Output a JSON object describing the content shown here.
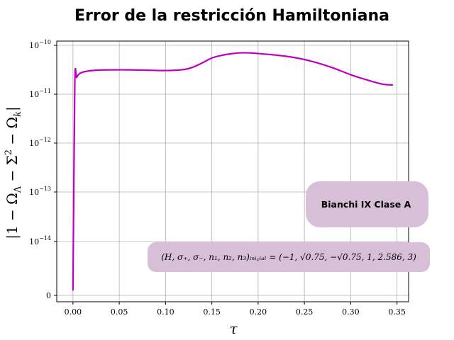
{
  "chart_data": {
    "type": "line",
    "title": "Error de la restricción Hamiltoniana",
    "xlabel": "τ",
    "ylabel": "|1 − Ω_Λ − Σ² − Ω_k|",
    "xlim": [
      -0.0175,
      0.3625
    ],
    "x_ticks": [
      "0.00",
      "0.05",
      "0.10",
      "0.15",
      "0.20",
      "0.25",
      "0.30",
      "0.35"
    ],
    "x_tick_values": [
      0.0,
      0.05,
      0.1,
      0.15,
      0.2,
      0.25,
      0.3,
      0.35
    ],
    "yscale": "symlog",
    "y_ticks": [
      {
        "base": "0",
        "exp": ""
      },
      {
        "base": "10",
        "exp": "−14"
      },
      {
        "base": "10",
        "exp": "−13"
      },
      {
        "base": "10",
        "exp": "−12"
      },
      {
        "base": "10",
        "exp": "−11"
      },
      {
        "base": "10",
        "exp": "−10"
      }
    ],
    "y_tick_levels": [
      0,
      1,
      2,
      3,
      4,
      5
    ],
    "grid": true,
    "color": "#bf00bf",
    "x": [
      0.0,
      0.002,
      0.004,
      0.008,
      0.015,
      0.025,
      0.04,
      0.06,
      0.08,
      0.1,
      0.12,
      0.13,
      0.14,
      0.15,
      0.16,
      0.17,
      0.18,
      0.19,
      0.2,
      0.22,
      0.24,
      0.26,
      0.28,
      0.3,
      0.32,
      0.335,
      0.345
    ],
    "y": [
      1e-15,
      1.5e-11,
      2.2e-11,
      2.7e-11,
      2.95e-11,
      3.1e-11,
      3.15e-11,
      3.15e-11,
      3.1e-11,
      3.05e-11,
      3.2e-11,
      3.6e-11,
      4.4e-11,
      5.5e-11,
      6.2e-11,
      6.7e-11,
      7e-11,
      7e-11,
      6.8e-11,
      6.3e-11,
      5.6e-11,
      4.6e-11,
      3.5e-11,
      2.5e-11,
      1.9e-11,
      1.6e-11,
      1.55e-11
    ],
    "annotations": [
      {
        "id": "box1",
        "text": "Bianchi IX Clase A",
        "color": "#d8bfd8"
      },
      {
        "id": "box2",
        "text": "(H, σ₊, σ₋, n₁, n₂, n₃)ᵢₙᵢ꜀ᵢₐₗ = (−1, √0.75, −√0.75, 1, 2.586, 3)",
        "color": "#d8bfd8"
      }
    ]
  }
}
